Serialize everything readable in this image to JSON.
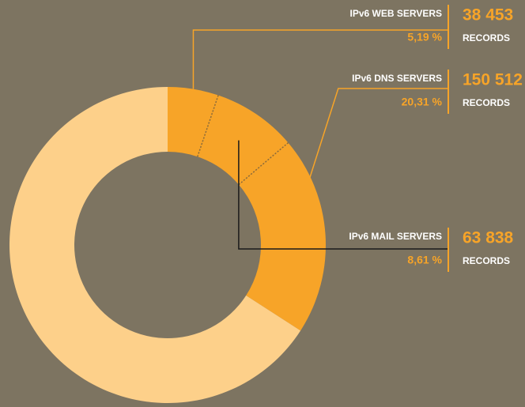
{
  "chart_data": {
    "type": "donut",
    "categories": [
      "IPv6 WEB SERVERS",
      "IPv6 MAIL SERVERS",
      "IPv6 DNS SERVERS",
      null
    ],
    "values": [
      5.19,
      8.61,
      20.31,
      65.89
    ],
    "value_labels": [
      "5,19 %",
      "8,61 %",
      "20,31 %",
      null
    ],
    "records": [
      38453,
      63838,
      150512,
      null
    ],
    "record_labels": [
      "38 453",
      "63 838",
      "150 512",
      null
    ],
    "records_unit": "RECORDS",
    "colors": [
      "#f7a428",
      "#f7a428",
      "#f7a428",
      "#fdd08a"
    ]
  }
}
